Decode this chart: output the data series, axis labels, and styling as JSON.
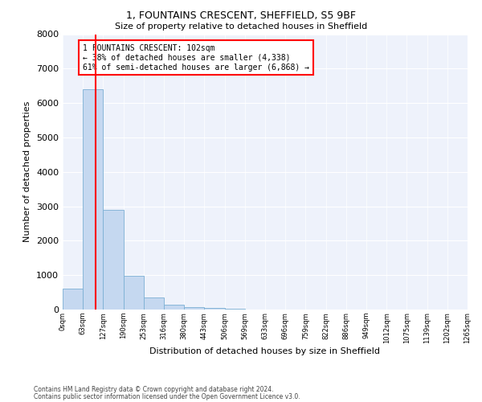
{
  "title1": "1, FOUNTAINS CRESCENT, SHEFFIELD, S5 9BF",
  "title2": "Size of property relative to detached houses in Sheffield",
  "xlabel": "Distribution of detached houses by size in Sheffield",
  "ylabel": "Number of detached properties",
  "bar_values": [
    600,
    6400,
    2900,
    970,
    360,
    150,
    80,
    50,
    20,
    10,
    5,
    5,
    3,
    2,
    2,
    2,
    2,
    2,
    2,
    2
  ],
  "bar_labels": [
    "0sqm",
    "63sqm",
    "127sqm",
    "190sqm",
    "253sqm",
    "316sqm",
    "380sqm",
    "443sqm",
    "506sqm",
    "569sqm",
    "633sqm",
    "696sqm",
    "759sqm",
    "822sqm",
    "886sqm",
    "949sqm",
    "1012sqm",
    "1075sqm",
    "1139sqm",
    "1202sqm",
    "1265sqm"
  ],
  "bar_color": "#c5d8f0",
  "bar_edge_color": "#7bafd4",
  "vline_color": "red",
  "property_name": "1 FOUNTAINS CRESCENT: 102sqm",
  "annotation_line1": "← 38% of detached houses are smaller (4,338)",
  "annotation_line2": "61% of semi-detached houses are larger (6,868) →",
  "ylim": [
    0,
    8000
  ],
  "yticks": [
    0,
    1000,
    2000,
    3000,
    4000,
    5000,
    6000,
    7000,
    8000
  ],
  "background_color": "#eef2fb",
  "footer1": "Contains HM Land Registry data © Crown copyright and database right 2024.",
  "footer2": "Contains public sector information licensed under the Open Government Licence v3.0."
}
